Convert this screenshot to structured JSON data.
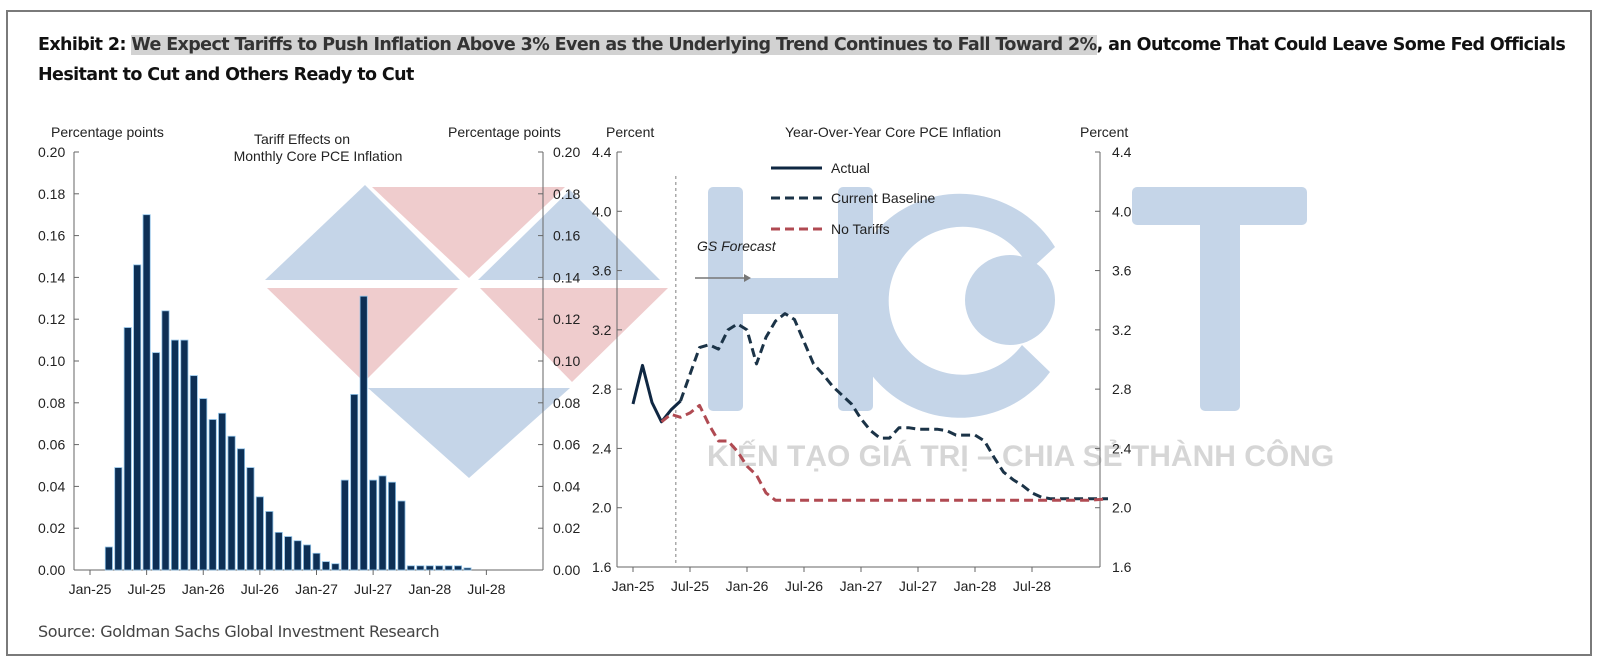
{
  "title": {
    "prefix": "Exhibit 2: ",
    "highlighted": "We Expect Tariffs to Push Inflation Above 3% Even as the Underlying Trend Continues to Fall Toward 2%",
    "suffix": ", an Outcome That Could Leave Some Fed Officials Hesitant to Cut and Others Ready to Cut"
  },
  "source": "Source: Goldman Sachs Global Investment Research",
  "watermark": {
    "logo_text": "HCT",
    "tagline": "KIẾN TẠO GIÁ TRỊ – CHIA SẺ THÀNH CÔNG",
    "colors": {
      "blue": "#c5d5e8",
      "pink": "#efcccd"
    }
  },
  "chart_data": [
    {
      "type": "bar",
      "title": "Tariff Effects on Monthly Core PCE Inflation",
      "title_lines": [
        "Tariff Effects on",
        "Monthly Core PCE Inflation"
      ],
      "ylabel_left": "Percentage points",
      "ylabel_right": "Percentage points",
      "ylim": [
        0,
        0.2
      ],
      "yticks": [
        "0.00",
        "0.02",
        "0.04",
        "0.06",
        "0.08",
        "0.10",
        "0.12",
        "0.14",
        "0.16",
        "0.18",
        "0.20"
      ],
      "xticks": [
        "Jan-25",
        "Jul-25",
        "Jan-26",
        "Jul-26",
        "Jan-27",
        "Jul-27",
        "Jan-28",
        "Jul-28"
      ],
      "x_range_months": [
        0,
        48
      ],
      "bar_color": "#0d2f55",
      "bar_edge_color": "#8fc1e6",
      "series": [
        {
          "name": "Tariff effect",
          "month_index": [
            2,
            3,
            4,
            5,
            6,
            7,
            8,
            9,
            10,
            11,
            12,
            13,
            14,
            15,
            16,
            17,
            18,
            19,
            20,
            21,
            22,
            23,
            24,
            25,
            26,
            27,
            28,
            29,
            30,
            31,
            32,
            33,
            34,
            35,
            36,
            37,
            38,
            39,
            40
          ],
          "values": [
            0.011,
            0.049,
            0.116,
            0.146,
            0.17,
            0.104,
            0.124,
            0.11,
            0.11,
            0.093,
            0.082,
            0.072,
            0.075,
            0.064,
            0.058,
            0.049,
            0.035,
            0.028,
            0.018,
            0.016,
            0.014,
            0.012,
            0.008,
            0.004,
            0.003,
            0.043,
            0.084,
            0.131,
            0.043,
            0.045,
            0.042,
            0.033,
            0.002,
            0.002,
            0.002,
            0.002,
            0.002,
            0.002,
            0.001
          ]
        }
      ]
    },
    {
      "type": "line",
      "title": "Year-Over-Year Core PCE Inflation",
      "ylabel_left": "Percent",
      "ylabel_right": "Percent",
      "ylim": [
        1.6,
        4.4
      ],
      "yticks": [
        "1.6",
        "2.0",
        "2.4",
        "2.8",
        "3.2",
        "3.6",
        "4.0",
        "4.4"
      ],
      "xticks": [
        "Jan-25",
        "Jul-25",
        "Jan-26",
        "Jul-26",
        "Jan-27",
        "Jul-27",
        "Jan-28",
        "Jul-28"
      ],
      "x_range_months": [
        0,
        50
      ],
      "forecast_start_month": 4.5,
      "annotation": "GS Forecast",
      "legend": {
        "placement": "top-center",
        "entries": [
          "Actual",
          "Current Baseline",
          "No Tariffs"
        ]
      },
      "series": [
        {
          "name": "Actual",
          "color": "#0f2742",
          "style": "solid",
          "x": [
            0,
            1,
            2,
            3,
            4,
            5
          ],
          "y": [
            2.7,
            2.96,
            2.71,
            2.58,
            2.66,
            2.72
          ]
        },
        {
          "name": "Current Baseline",
          "color": "#1b3347",
          "style": "dashed",
          "x": [
            5,
            6,
            7,
            8,
            9,
            10,
            11,
            12,
            13,
            14,
            15,
            16,
            17,
            18,
            19,
            20,
            21,
            22,
            23,
            24,
            25,
            26,
            27,
            28,
            29,
            30,
            31,
            32,
            33,
            34,
            35,
            36,
            37,
            38,
            39,
            40,
            41,
            42,
            43,
            44,
            45,
            46,
            47,
            48,
            49,
            50
          ],
          "y": [
            2.72,
            2.9,
            3.08,
            3.1,
            3.07,
            3.2,
            3.24,
            3.2,
            2.97,
            3.15,
            3.26,
            3.31,
            3.27,
            3.12,
            2.97,
            2.9,
            2.82,
            2.76,
            2.7,
            2.6,
            2.52,
            2.47,
            2.47,
            2.54,
            2.54,
            2.53,
            2.53,
            2.53,
            2.52,
            2.49,
            2.49,
            2.49,
            2.45,
            2.34,
            2.24,
            2.19,
            2.15,
            2.1,
            2.07,
            2.06,
            2.06,
            2.06,
            2.06,
            2.06,
            2.06,
            2.06
          ]
        },
        {
          "name": "No Tariffs",
          "color": "#b04a52",
          "style": "dashed",
          "x": [
            3,
            4,
            5,
            6,
            7,
            8,
            9,
            10,
            11,
            12,
            13,
            14,
            15,
            16,
            17,
            18,
            19,
            20,
            22,
            24,
            26,
            28,
            30,
            32,
            34,
            36,
            38,
            40,
            42,
            44,
            46,
            48,
            50
          ],
          "y": [
            2.58,
            2.63,
            2.61,
            2.64,
            2.69,
            2.56,
            2.45,
            2.45,
            2.38,
            2.28,
            2.22,
            2.1,
            2.05,
            2.05,
            2.05,
            2.05,
            2.05,
            2.05,
            2.05,
            2.05,
            2.05,
            2.05,
            2.05,
            2.05,
            2.05,
            2.05,
            2.05,
            2.05,
            2.05,
            2.05,
            2.05,
            2.05,
            2.06
          ]
        }
      ]
    }
  ]
}
